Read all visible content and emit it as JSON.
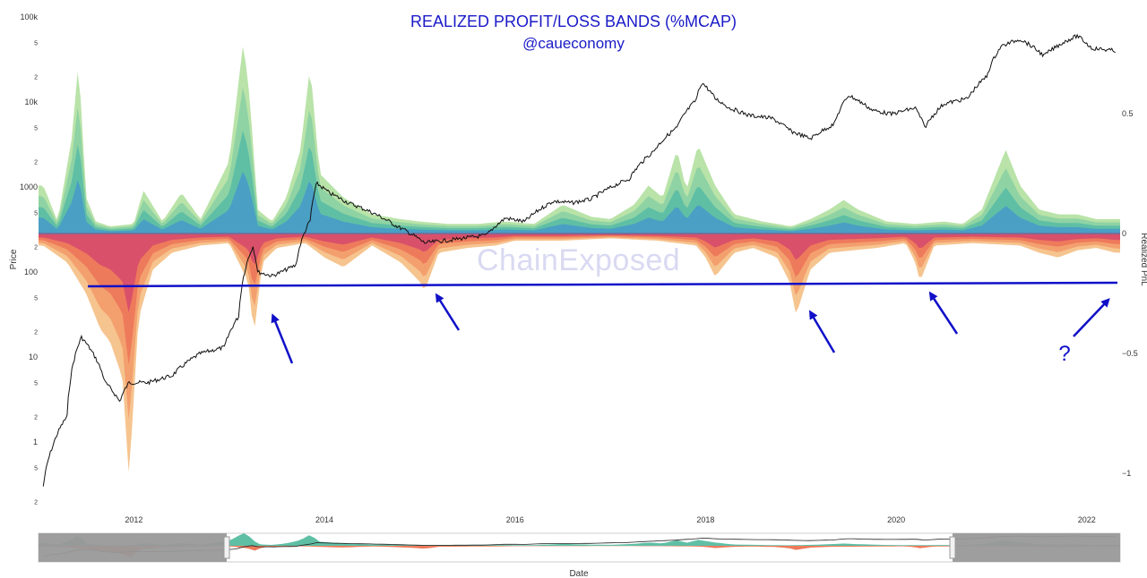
{
  "title": "REALIZED PROFIT/LOSS BANDS (%MCAP)",
  "subtitle": "@caueconomy",
  "watermark": "ChainExposed",
  "annotation_question": "?",
  "colors": {
    "price_line": "#111111",
    "support_line": "#1010c8",
    "arrows": "#1010c8",
    "profit_bands": [
      "#b9e3a8",
      "#8fd3a4",
      "#5fbfa5",
      "#4a9fc4"
    ],
    "loss_bands": [
      "#f6c48f",
      "#f3a06e",
      "#ee7a5c",
      "#d9506a"
    ],
    "navigator_mask": "#999999"
  },
  "chart_data": {
    "type": "area",
    "title": "REALIZED PROFIT/LOSS BANDS (%MCAP)",
    "subtitle": "@caueconomy",
    "xlabel": "Date",
    "ylabel_left": "Price",
    "ylabel_right": "Realized PnL",
    "left_axis": {
      "scale": "log",
      "tick_labels": [
        "100k",
        "5",
        "2",
        "10k",
        "5",
        "2",
        "1000",
        "5",
        "2",
        "100",
        "5",
        "2",
        "10",
        "5",
        "2",
        "1",
        "5",
        "2"
      ]
    },
    "right_axis": {
      "scale": "linear",
      "ylim": [
        -1.05,
        0.8
      ],
      "tick_labels": [
        "0.5",
        "0",
        "−0.5",
        "−1"
      ]
    },
    "x_tick_labels": [
      "2012",
      "2014",
      "2016",
      "2018",
      "2020",
      "2022"
    ],
    "price_series": {
      "name": "Price",
      "x": [
        2011.05,
        2011.15,
        2011.3,
        2011.45,
        2011.55,
        2011.7,
        2011.85,
        2011.95,
        2012.15,
        2012.4,
        2012.7,
        2012.95,
        2013.1,
        2013.25,
        2013.3,
        2013.45,
        2013.55,
        2013.7,
        2013.85,
        2013.92,
        2014.05,
        2014.25,
        2014.5,
        2014.75,
        2015.05,
        2015.35,
        2015.7,
        2015.9,
        2016.1,
        2016.4,
        2016.6,
        2016.8,
        2017.0,
        2017.2,
        2017.45,
        2017.7,
        2017.9,
        2017.96,
        2018.1,
        2018.25,
        2018.45,
        2018.7,
        2018.9,
        2019.1,
        2019.35,
        2019.5,
        2019.75,
        2019.95,
        2020.2,
        2020.3,
        2020.5,
        2020.75,
        2020.95,
        2021.1,
        2021.3,
        2021.55,
        2021.75,
        2021.9,
        2022.05,
        2022.3
      ],
      "values": [
        0.3,
        0.9,
        2,
        17,
        12,
        5,
        3,
        5,
        5,
        6,
        11,
        13,
        30,
        200,
        100,
        90,
        100,
        120,
        400,
        1100,
        850,
        650,
        500,
        350,
        220,
        240,
        270,
        430,
        390,
        680,
        650,
        720,
        980,
        1250,
        2600,
        5000,
        10500,
        17000,
        11000,
        8500,
        7000,
        6400,
        4500,
        3700,
        5500,
        12000,
        8000,
        7200,
        8500,
        5000,
        9500,
        11000,
        20000,
        45000,
        55000,
        35000,
        50000,
        60000,
        43000,
        40000
      ]
    },
    "realized_profit": {
      "name": "Realized profit",
      "x": [
        2011.05,
        2011.2,
        2011.35,
        2011.42,
        2011.5,
        2011.6,
        2011.75,
        2012.0,
        2012.1,
        2012.3,
        2012.5,
        2012.7,
        2013.0,
        2013.15,
        2013.22,
        2013.3,
        2013.45,
        2013.6,
        2013.75,
        2013.85,
        2013.95,
        2014.2,
        2014.5,
        2014.8,
        2015.0,
        2015.3,
        2015.6,
        2015.9,
        2016.2,
        2016.5,
        2016.8,
        2017.0,
        2017.25,
        2017.4,
        2017.55,
        2017.7,
        2017.8,
        2017.92,
        2018.1,
        2018.3,
        2018.6,
        2018.9,
        2019.1,
        2019.3,
        2019.45,
        2019.6,
        2019.9,
        2020.2,
        2020.5,
        2020.7,
        2020.9,
        2021.05,
        2021.15,
        2021.3,
        2021.5,
        2021.7,
        2021.9,
        2022.1,
        2022.3
      ],
      "values": [
        0.2,
        0.05,
        0.4,
        0.72,
        0.15,
        0.05,
        0.03,
        0.04,
        0.18,
        0.05,
        0.17,
        0.06,
        0.3,
        0.8,
        0.55,
        0.1,
        0.05,
        0.15,
        0.35,
        0.7,
        0.25,
        0.15,
        0.08,
        0.06,
        0.05,
        0.04,
        0.04,
        0.05,
        0.04,
        0.12,
        0.07,
        0.06,
        0.12,
        0.2,
        0.15,
        0.35,
        0.18,
        0.37,
        0.2,
        0.08,
        0.05,
        0.03,
        0.06,
        0.1,
        0.14,
        0.1,
        0.05,
        0.04,
        0.05,
        0.04,
        0.1,
        0.25,
        0.35,
        0.2,
        0.1,
        0.08,
        0.08,
        0.06,
        0.06
      ]
    },
    "realized_loss": {
      "name": "Realized loss",
      "x": [
        2011.05,
        2011.3,
        2011.5,
        2011.65,
        2011.75,
        2011.88,
        2011.95,
        2012.05,
        2012.2,
        2012.4,
        2012.7,
        2013.0,
        2013.2,
        2013.26,
        2013.35,
        2013.5,
        2013.8,
        2014.0,
        2014.2,
        2014.5,
        2014.8,
        2015.0,
        2015.05,
        2015.2,
        2015.5,
        2015.8,
        2016.0,
        2016.5,
        2017.0,
        2017.5,
        2017.9,
        2018.0,
        2018.1,
        2018.3,
        2018.5,
        2018.75,
        2018.88,
        2018.95,
        2019.1,
        2019.3,
        2019.8,
        2020.1,
        2020.2,
        2020.25,
        2020.4,
        2020.8,
        2021.3,
        2021.5,
        2021.7,
        2021.9,
        2022.1,
        2022.3
      ],
      "values": [
        -0.05,
        -0.12,
        -0.25,
        -0.4,
        -0.45,
        -0.6,
        -1.02,
        -0.35,
        -0.15,
        -0.08,
        -0.05,
        -0.04,
        -0.2,
        -0.42,
        -0.12,
        -0.06,
        -0.04,
        -0.1,
        -0.14,
        -0.05,
        -0.12,
        -0.2,
        -0.24,
        -0.08,
        -0.06,
        -0.05,
        -0.03,
        -0.03,
        -0.02,
        -0.03,
        -0.05,
        -0.1,
        -0.18,
        -0.08,
        -0.06,
        -0.1,
        -0.2,
        -0.34,
        -0.15,
        -0.08,
        -0.06,
        -0.04,
        -0.12,
        -0.2,
        -0.05,
        -0.04,
        -0.05,
        -0.08,
        -0.1,
        -0.07,
        -0.06,
        -0.08
      ]
    },
    "support_line_value": -0.22,
    "arrow_targets_years": [
      2013.33,
      2015.15,
      2018.98,
      2020.45,
      2022.25
    ],
    "grid": false,
    "legend": "none"
  },
  "navigator": {
    "tick_labels": []
  }
}
